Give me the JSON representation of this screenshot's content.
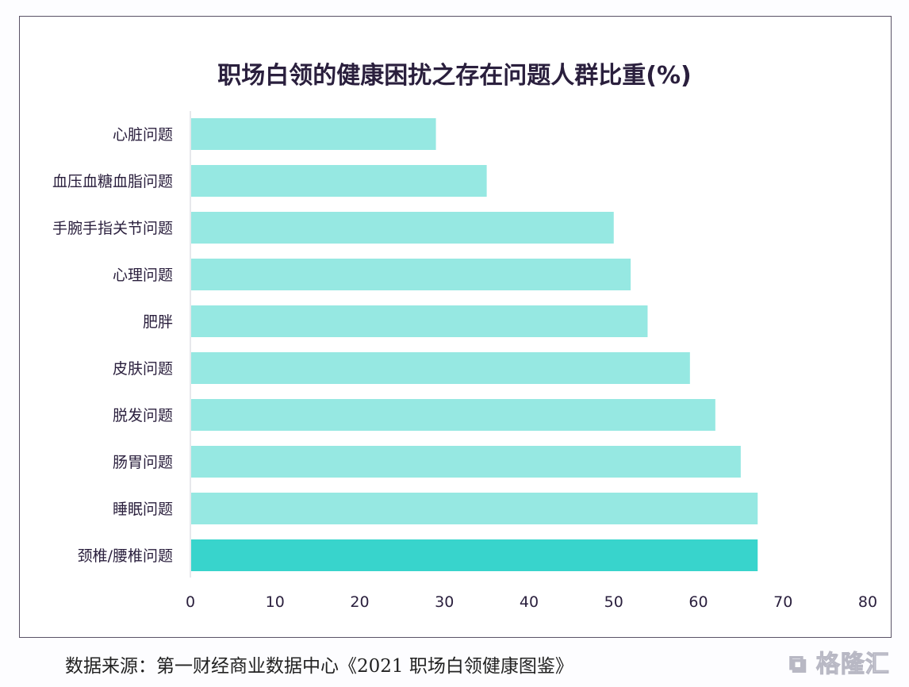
{
  "chart_data": {
    "type": "bar",
    "orientation": "horizontal",
    "title": "职场白领的健康困扰之存在问题人群比重(%)",
    "categories": [
      "心脏问题",
      "血压血糖血脂问题",
      "手腕手指关节问题",
      "心理问题",
      "肥胖",
      "皮肤问题",
      "脱发问题",
      "肠胃问题",
      "睡眠问题",
      "颈椎/腰椎问题"
    ],
    "values": [
      29,
      35,
      50,
      52,
      54,
      59,
      62,
      65,
      67,
      67
    ],
    "xlim": [
      0,
      80
    ],
    "xticks": [
      "0",
      "10",
      "20",
      "30",
      "40",
      "50",
      "60",
      "70",
      "80"
    ],
    "xlabel": "",
    "ylabel": "",
    "grid": false,
    "colors": {
      "bar": "#96e8e2",
      "highlight": "#38d4cc",
      "text": "#2a1f3d"
    }
  },
  "source": "数据来源：第一财经商业数据中心《2021 职场白领健康图鉴》",
  "watermark": "格隆汇"
}
